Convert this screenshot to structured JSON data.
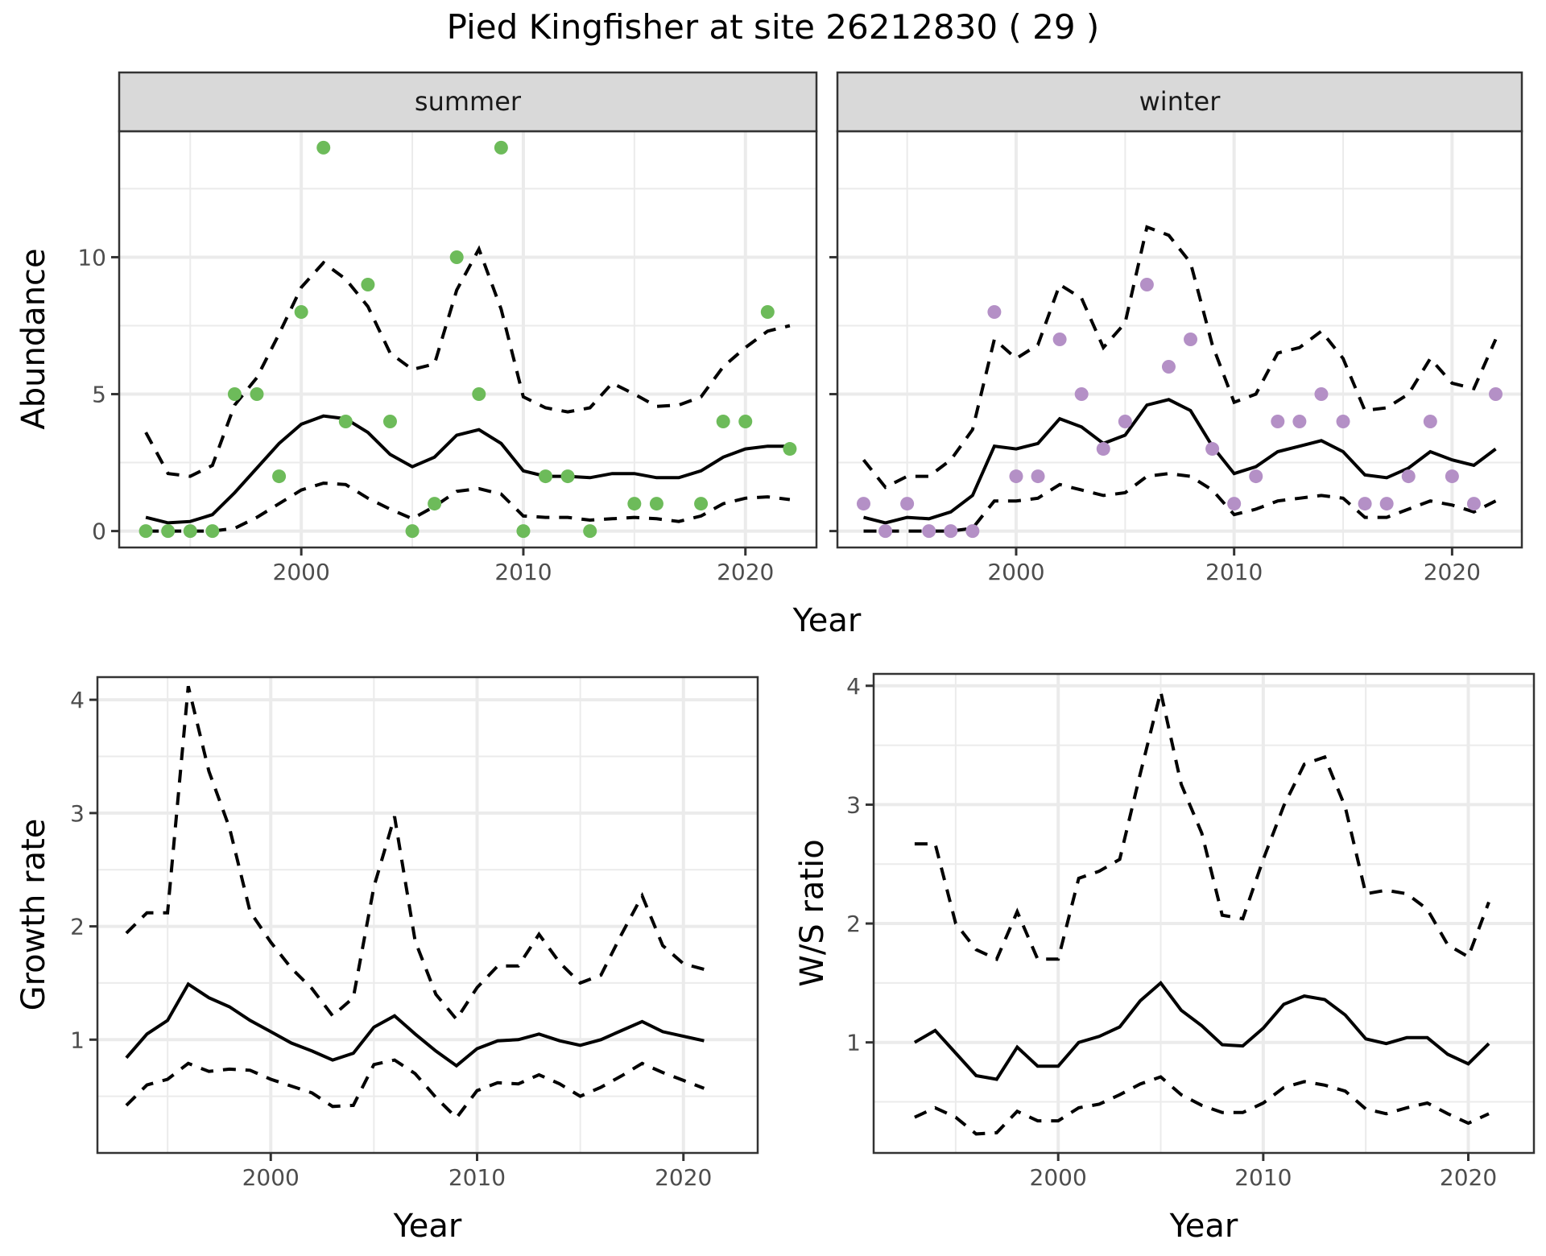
{
  "chart_data": {
    "title": "Pied Kingfisher at site 26212830 ( 29 )",
    "panels": [
      {
        "id": "abundance",
        "type": "line+scatter",
        "facets": [
          "summer",
          "winter"
        ],
        "xlabel": "Year",
        "ylabel": "Abundance",
        "xlim": [
          1992.3,
          2023.0
        ],
        "ylim": [
          -0.6,
          14.6
        ],
        "xticks": [
          2000,
          2010,
          2020
        ],
        "yticks": [
          0,
          5,
          10
        ],
        "grid": true,
        "series": {
          "summer": {
            "point_color": "#6dbb5a",
            "years": [
              1993,
              1994,
              1995,
              1996,
              1997,
              1998,
              1999,
              2000,
              2001,
              2002,
              2003,
              2004,
              2005,
              2006,
              2007,
              2008,
              2009,
              2010,
              2011,
              2012,
              2013,
              2014,
              2015,
              2016,
              2017,
              2018,
              2019,
              2020,
              2021,
              2022
            ],
            "observed": [
              0,
              0,
              0,
              0,
              5,
              5,
              2,
              8,
              14,
              4,
              9,
              4,
              0,
              1,
              10,
              5,
              14,
              0,
              2,
              2,
              0,
              null,
              1,
              1,
              null,
              1,
              4,
              4,
              8,
              3
            ],
            "fitted": [
              0.5,
              0.3,
              0.35,
              0.6,
              1.4,
              2.3,
              3.2,
              3.9,
              4.2,
              4.1,
              3.6,
              2.8,
              2.35,
              2.7,
              3.5,
              3.7,
              3.2,
              2.2,
              2.0,
              2.0,
              1.95,
              2.1,
              2.1,
              1.95,
              1.95,
              2.2,
              2.7,
              3.0,
              3.1,
              3.1
            ],
            "lower": [
              0,
              0,
              0,
              0,
              0.1,
              0.5,
              1.0,
              1.5,
              1.75,
              1.7,
              1.2,
              0.8,
              0.45,
              0.9,
              1.45,
              1.55,
              1.35,
              0.55,
              0.5,
              0.5,
              0.4,
              0.45,
              0.5,
              0.45,
              0.35,
              0.55,
              1.0,
              1.2,
              1.25,
              1.15
            ],
            "upper": [
              3.6,
              2.1,
              2.0,
              2.4,
              4.6,
              5.6,
              7.2,
              8.9,
              9.8,
              9.2,
              8.2,
              6.5,
              5.9,
              6.1,
              8.8,
              10.3,
              8.1,
              4.9,
              4.5,
              4.35,
              4.5,
              5.4,
              5.0,
              4.55,
              4.6,
              4.9,
              6.0,
              6.7,
              7.3,
              7.5
            ]
          },
          "winter": {
            "point_color": "#b490c6",
            "years": [
              1993,
              1994,
              1995,
              1996,
              1997,
              1998,
              1999,
              2000,
              2001,
              2002,
              2003,
              2004,
              2005,
              2006,
              2007,
              2008,
              2009,
              2010,
              2011,
              2012,
              2013,
              2014,
              2015,
              2016,
              2017,
              2018,
              2019,
              2020,
              2021,
              2022
            ],
            "observed": [
              1,
              0,
              1,
              0,
              0,
              0,
              8,
              2,
              2,
              7,
              5,
              3,
              4,
              9,
              6,
              7,
              3,
              1,
              2,
              4,
              4,
              5,
              4,
              1,
              1,
              2,
              4,
              2,
              1,
              5
            ],
            "fitted": [
              0.5,
              0.3,
              0.5,
              0.45,
              0.7,
              1.3,
              3.1,
              3.0,
              3.2,
              4.1,
              3.8,
              3.2,
              3.5,
              4.6,
              4.8,
              4.4,
              3.1,
              2.1,
              2.35,
              2.9,
              3.1,
              3.3,
              2.9,
              2.05,
              1.95,
              2.3,
              2.9,
              2.6,
              2.4,
              3.0
            ],
            "lower": [
              0,
              0,
              0,
              0,
              0,
              0.1,
              1.1,
              1.1,
              1.2,
              1.7,
              1.5,
              1.3,
              1.4,
              2.0,
              2.1,
              2.0,
              1.5,
              0.6,
              0.8,
              1.1,
              1.2,
              1.3,
              1.2,
              0.5,
              0.5,
              0.8,
              1.1,
              0.95,
              0.7,
              1.1
            ],
            "upper": [
              2.6,
              1.6,
              2.0,
              2.0,
              2.6,
              3.7,
              7.0,
              6.3,
              6.8,
              9.0,
              8.5,
              6.7,
              7.6,
              11.1,
              10.8,
              9.8,
              6.8,
              4.7,
              5.0,
              6.5,
              6.7,
              7.3,
              6.3,
              4.4,
              4.5,
              5.0,
              6.3,
              5.4,
              5.2,
              7.0
            ]
          }
        }
      },
      {
        "id": "growth",
        "type": "line",
        "xlabel": "Year",
        "ylabel": "Growth rate",
        "xlim": [
          1991.6,
          2023.6
        ],
        "ylim": [
          0.0,
          4.2
        ],
        "xticks": [
          2000,
          2010,
          2020
        ],
        "yticks": [
          1,
          2,
          3,
          4
        ],
        "grid": true,
        "years": [
          1993,
          1994,
          1995,
          1996,
          1997,
          1998,
          1999,
          2000,
          2001,
          2002,
          2003,
          2004,
          2005,
          2006,
          2007,
          2008,
          2009,
          2010,
          2011,
          2012,
          2013,
          2014,
          2015,
          2016,
          2017,
          2018,
          2019,
          2020,
          2021
        ],
        "fitted": [
          0.84,
          1.05,
          1.17,
          1.49,
          1.37,
          1.29,
          1.17,
          1.07,
          0.97,
          0.9,
          0.82,
          0.88,
          1.11,
          1.21,
          1.05,
          0.9,
          0.77,
          0.92,
          0.99,
          1.0,
          1.05,
          0.99,
          0.95,
          1.0,
          1.08,
          1.16,
          1.07,
          1.03,
          0.99
        ],
        "lower": [
          0.42,
          0.6,
          0.65,
          0.79,
          0.72,
          0.74,
          0.73,
          0.65,
          0.59,
          0.53,
          0.41,
          0.42,
          0.78,
          0.82,
          0.7,
          0.49,
          0.31,
          0.55,
          0.62,
          0.61,
          0.69,
          0.61,
          0.5,
          0.58,
          0.68,
          0.79,
          0.71,
          0.64,
          0.57
        ],
        "upper": [
          1.94,
          2.12,
          2.12,
          4.12,
          3.37,
          2.87,
          2.13,
          1.86,
          1.63,
          1.45,
          1.21,
          1.37,
          2.35,
          2.97,
          1.87,
          1.4,
          1.18,
          1.46,
          1.65,
          1.65,
          1.93,
          1.68,
          1.5,
          1.57,
          1.93,
          2.27,
          1.83,
          1.67,
          1.62
        ]
      },
      {
        "id": "ws_ratio",
        "type": "line",
        "xlabel": "Year",
        "ylabel": "W/S ratio",
        "xlim": [
          1991.0,
          2023.2
        ],
        "ylim": [
          0.07,
          4.1
        ],
        "xticks": [
          2000,
          2010,
          2020
        ],
        "yticks": [
          1,
          2,
          3,
          4
        ],
        "grid": true,
        "years": [
          1993,
          1994,
          1995,
          1996,
          1997,
          1998,
          1999,
          2000,
          2001,
          2002,
          2003,
          2004,
          2005,
          2006,
          2007,
          2008,
          2009,
          2010,
          2011,
          2012,
          2013,
          2014,
          2015,
          2016,
          2017,
          2018,
          2019,
          2020,
          2021
        ],
        "fitted": [
          1.0,
          1.1,
          0.91,
          0.72,
          0.69,
          0.96,
          0.8,
          0.8,
          1.0,
          1.05,
          1.13,
          1.35,
          1.5,
          1.27,
          1.14,
          0.98,
          0.97,
          1.12,
          1.32,
          1.39,
          1.36,
          1.23,
          1.03,
          0.99,
          1.04,
          1.04,
          0.9,
          0.82,
          0.99
        ],
        "lower": [
          0.37,
          0.45,
          0.37,
          0.23,
          0.24,
          0.42,
          0.34,
          0.34,
          0.45,
          0.48,
          0.56,
          0.65,
          0.71,
          0.56,
          0.47,
          0.41,
          0.41,
          0.49,
          0.62,
          0.67,
          0.64,
          0.59,
          0.44,
          0.4,
          0.45,
          0.49,
          0.4,
          0.32,
          0.4
        ],
        "upper": [
          2.67,
          2.67,
          2.0,
          1.78,
          1.7,
          2.1,
          1.7,
          1.7,
          2.38,
          2.44,
          2.54,
          3.26,
          3.95,
          3.17,
          2.76,
          2.07,
          2.04,
          2.54,
          2.99,
          3.34,
          3.4,
          2.98,
          2.25,
          2.28,
          2.25,
          2.12,
          1.82,
          1.72,
          2.18
        ]
      }
    ]
  }
}
